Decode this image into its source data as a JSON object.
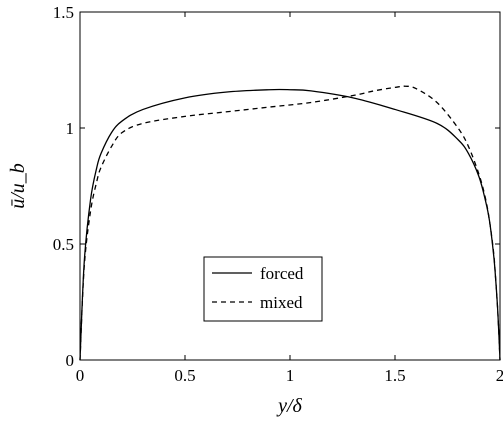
{
  "chart_data": {
    "type": "line",
    "title": "",
    "xlabel": "y/δ",
    "ylabel": "ū/u_b",
    "xlim": [
      0,
      2
    ],
    "ylim": [
      0,
      1.5
    ],
    "xticks": [
      0,
      0.5,
      1,
      1.5,
      2
    ],
    "yticks": [
      0,
      0.5,
      1,
      1.5
    ],
    "xtick_labels": [
      "0",
      "0.5",
      "1",
      "1.5",
      "2"
    ],
    "ytick_labels": [
      "0",
      "0.5",
      "1",
      "1.5"
    ],
    "grid": false,
    "legend_position": "lower-center",
    "series": [
      {
        "name": "forced",
        "style": "solid",
        "color": "#000000",
        "x": [
          0,
          0.02,
          0.05,
          0.08,
          0.1,
          0.15,
          0.2,
          0.3,
          0.5,
          0.7,
          0.9,
          1.0,
          1.1,
          1.3,
          1.5,
          1.7,
          1.8,
          1.85,
          1.9,
          1.93,
          1.95,
          1.97,
          1.98,
          1.99,
          2.0
        ],
        "y": [
          0,
          0.42,
          0.69,
          0.83,
          0.89,
          0.98,
          1.03,
          1.08,
          1.13,
          1.155,
          1.165,
          1.165,
          1.16,
          1.13,
          1.08,
          1.02,
          0.95,
          0.89,
          0.79,
          0.69,
          0.6,
          0.45,
          0.34,
          0.2,
          0
        ]
      },
      {
        "name": "mixed",
        "style": "dashed",
        "color": "#000000",
        "x": [
          0,
          0.02,
          0.05,
          0.08,
          0.1,
          0.15,
          0.2,
          0.3,
          0.5,
          0.7,
          0.9,
          1.1,
          1.3,
          1.4,
          1.5,
          1.55,
          1.6,
          1.7,
          1.8,
          1.85,
          1.9,
          1.93,
          1.95,
          1.97,
          1.98,
          1.99,
          2.0
        ],
        "y": [
          0,
          0.4,
          0.64,
          0.77,
          0.83,
          0.92,
          0.98,
          1.02,
          1.05,
          1.07,
          1.09,
          1.11,
          1.14,
          1.16,
          1.175,
          1.18,
          1.17,
          1.11,
          1.0,
          0.92,
          0.8,
          0.7,
          0.6,
          0.46,
          0.34,
          0.2,
          0
        ]
      }
    ]
  }
}
